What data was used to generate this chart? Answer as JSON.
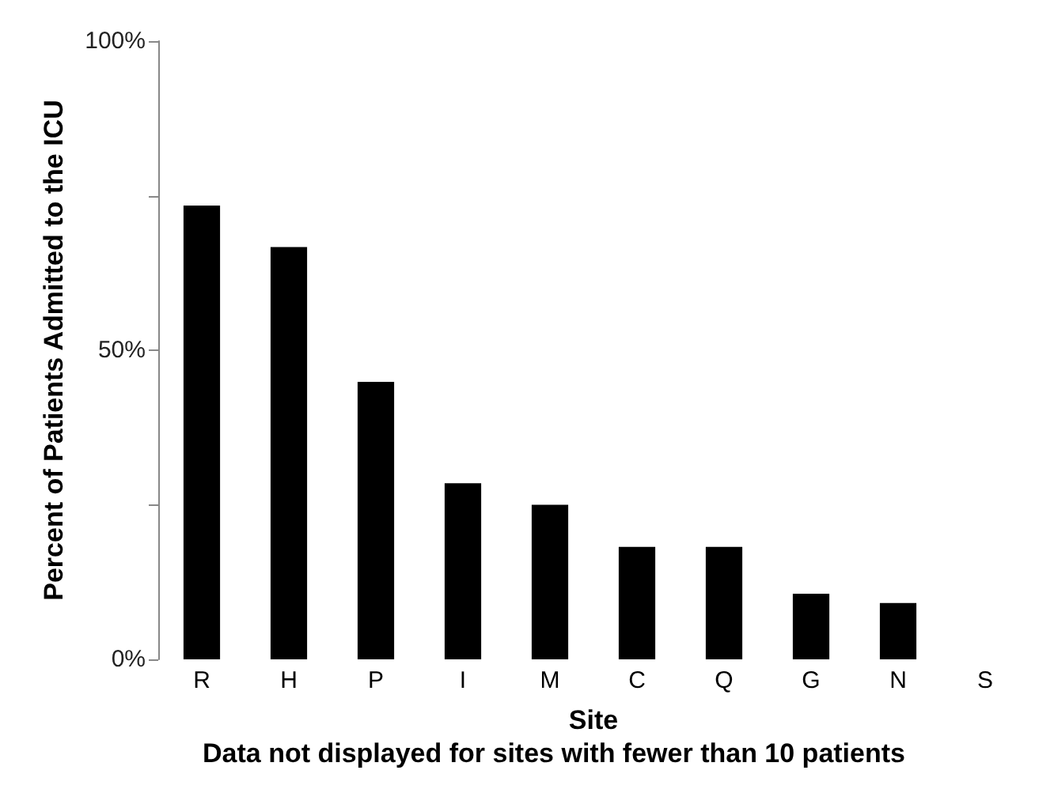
{
  "chart_data": {
    "type": "bar",
    "xlabel": "Site",
    "ylabel": "Percent of Patients Admitted to the ICU",
    "categories": [
      "R",
      "H",
      "P",
      "I",
      "M",
      "C",
      "Q",
      "G",
      "N",
      "S"
    ],
    "values": [
      73.4,
      66.7,
      44.9,
      28.5,
      25.0,
      18.2,
      18.2,
      10.6,
      9.1,
      null
    ],
    "color": "#000000",
    "ylim": [
      0,
      100
    ],
    "yticks": [
      {
        "value": 0,
        "label": "0%"
      },
      {
        "value": 25,
        "label": null
      },
      {
        "value": 50,
        "label": "50%"
      },
      {
        "value": 75,
        "label": null
      },
      {
        "value": 100,
        "label": "100%"
      }
    ],
    "grid": false,
    "annotations": [
      "Data not displayed for sites with fewer than 10 patients"
    ]
  }
}
